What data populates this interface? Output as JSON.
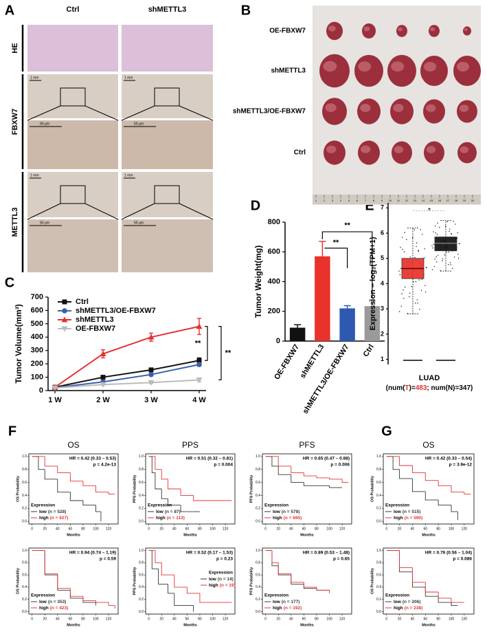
{
  "figure": {
    "panel_labels": [
      "A",
      "B",
      "C",
      "D",
      "E",
      "F",
      "G"
    ],
    "panel_a": {
      "columns": [
        "Ctrl",
        "shMETTL3"
      ],
      "rows": [
        "HE",
        "FBXW7",
        "METTL3"
      ],
      "scale_bars": [
        "1 mm",
        "50 μm"
      ]
    },
    "panel_b": {
      "groups": [
        "OE-FBXW7",
        "shMETTL3",
        "shMETTL3/OE-FBXW7",
        "Ctrl"
      ],
      "ruler": [
        1,
        2,
        3,
        4,
        5,
        6,
        7,
        8,
        9,
        10,
        11,
        12,
        13,
        14,
        15,
        16,
        17,
        18,
        19,
        20
      ]
    }
  },
  "chart_data": [
    {
      "type": "line",
      "ylabel": "Tumor Volume(mm³)",
      "categories": [
        "1 W",
        "2 W",
        "3 W",
        "4 W"
      ],
      "ylim": [
        0,
        700
      ],
      "yticks": [
        0,
        100,
        200,
        300,
        400,
        500,
        600,
        700
      ],
      "legend": "upper left",
      "series": [
        {
          "name": "Ctrl",
          "color": "#111111",
          "marker": "square",
          "values": [
            25,
            100,
            155,
            225
          ],
          "errors": [
            5,
            10,
            12,
            20
          ]
        },
        {
          "name": "shMETTL3/OE-FBXW7",
          "color": "#3a5fb0",
          "marker": "circle",
          "values": [
            22,
            65,
            120,
            195
          ],
          "errors": [
            3,
            8,
            10,
            12
          ]
        },
        {
          "name": "shMETTL3",
          "color": "#e53030",
          "marker": "triangle",
          "values": [
            25,
            275,
            400,
            480
          ],
          "errors": [
            5,
            30,
            30,
            60
          ]
        },
        {
          "name": "OE-FBXW7",
          "color": "#bbbbbb",
          "marker": "triangle-down",
          "values": [
            20,
            45,
            60,
            80
          ],
          "errors": [
            3,
            5,
            8,
            15
          ]
        }
      ],
      "annotations": [
        "**",
        "**"
      ]
    },
    {
      "type": "bar",
      "ylabel": "Tumor Weight(mg)",
      "categories": [
        "OE-FBXW7",
        "shMETTL3",
        "shMETTL3/OE-FBXW7",
        "Ctrl"
      ],
      "values": [
        90,
        570,
        220,
        235
      ],
      "errors": [
        20,
        100,
        18,
        35
      ],
      "colors": [
        "#111111",
        "#e8322a",
        "#2f59b0",
        "#9a9a9a"
      ],
      "ylim": [
        0,
        800
      ],
      "yticks": [
        0,
        200,
        400,
        600,
        800
      ],
      "annotations": [
        "**",
        "**"
      ]
    },
    {
      "type": "box",
      "ylabel": "Expression – log₂(TPM+1)",
      "xlabel": "LUAD",
      "xlabel_note": [
        {
          "text": "(num("
        },
        {
          "text": "T",
          "color": "#e53030"
        },
        {
          "text": ")="
        },
        {
          "text": "483",
          "color": "#e53030"
        },
        {
          "text": "; num(N)=347)"
        }
      ],
      "ylim": [
        0.8,
        7.2
      ],
      "yticks": [
        1,
        2,
        3,
        4,
        5,
        6,
        7
      ],
      "boxes": [
        {
          "color": "#e8322a",
          "whisker_low": 2.8,
          "q1": 4.2,
          "median": 4.6,
          "q3": 5.0,
          "whisker_high": 6.2
        },
        {
          "color": "#111111",
          "whisker_low": 4.5,
          "q1": 5.3,
          "median": 5.6,
          "q3": 5.85,
          "whisker_high": 6.5
        }
      ],
      "annotations": [
        {
          "text": "*",
          "color": "#e53030"
        }
      ]
    },
    {
      "type": "km",
      "title": "OS",
      "ylabel": "OS Probability",
      "xlabel": "Months",
      "hr": "HR = 0.42 (0.33 – 0.53)",
      "p": "p = 4.2e-13",
      "legend_title": "Expression",
      "legend": "lower left",
      "xlim": [
        -5,
        135
      ],
      "ylim": [
        -0.04,
        1.04
      ],
      "xticks": [
        0,
        20,
        40,
        60,
        80,
        100,
        120
      ],
      "yticks": [
        {
          "value": 0,
          "label": "0.0"
        },
        0.2,
        0.4,
        0.6,
        0.8,
        {
          "value": 1,
          "label": "1.0"
        }
      ],
      "series": [
        {
          "name": "low",
          "n_label": "(n = 528)",
          "color": "#333333",
          "x": [
            0,
            10,
            20,
            40,
            60,
            80,
            100,
            108
          ],
          "values": [
            1,
            0.8,
            0.65,
            0.45,
            0.32,
            0.25,
            0.15,
            0
          ]
        },
        {
          "name": "high",
          "n_label": "(n = 627)",
          "color": "#e53030",
          "x": [
            0,
            20,
            40,
            60,
            80,
            100,
            120,
            130
          ],
          "values": [
            1,
            0.85,
            0.75,
            0.62,
            0.55,
            0.45,
            0.42,
            0.42
          ]
        }
      ]
    },
    {
      "type": "km",
      "title": "PPS",
      "ylabel": "PPS Probability",
      "xlabel": "Months",
      "hr": "HR = 0.51 (0.32 – 0.81)",
      "p": "p = 0.004",
      "legend_title": "Expression",
      "legend": "lower left",
      "xlim": [
        -5,
        135
      ],
      "ylim": [
        -0.04,
        1.04
      ],
      "xticks": [
        0,
        20,
        40,
        60,
        80,
        100,
        120
      ],
      "yticks": [
        {
          "value": 0,
          "label": "0.0"
        },
        0.2,
        0.4,
        0.6,
        0.8,
        {
          "value": 1,
          "label": "1.0"
        }
      ],
      "series": [
        {
          "name": "low",
          "n_label": "(n = 87)",
          "color": "#333333",
          "x": [
            0,
            5,
            10,
            20,
            30,
            50,
            70,
            80
          ],
          "values": [
            1,
            0.75,
            0.5,
            0.35,
            0.25,
            0.15,
            0.15,
            0.15
          ]
        },
        {
          "name": "high",
          "n_label": "(n = 113)",
          "color": "#e53030",
          "x": [
            0,
            10,
            20,
            30,
            50,
            70,
            100,
            130
          ],
          "values": [
            1,
            0.8,
            0.65,
            0.5,
            0.4,
            0.32,
            0.32,
            0.32
          ]
        }
      ]
    },
    {
      "type": "km",
      "title": "PFS",
      "ylabel": "PFS Probability",
      "xlabel": "Months",
      "hr": "HR = 0.65 (0.47 – 0.88)",
      "p": "p = 0.006",
      "legend_title": "Expression",
      "legend": "lower left",
      "xlim": [
        -5,
        135
      ],
      "ylim": [
        -0.04,
        1.04
      ],
      "xticks": [
        0,
        20,
        40,
        60,
        80,
        100,
        120
      ],
      "yticks": [
        {
          "value": 0,
          "label": "0.0"
        },
        0.2,
        0.4,
        0.6,
        0.8,
        {
          "value": 1,
          "label": "1.0"
        }
      ],
      "series": [
        {
          "name": "low",
          "n_label": "(n = 578)",
          "color": "#333333",
          "x": [
            0,
            10,
            20,
            40,
            60,
            80,
            100,
            120
          ],
          "values": [
            1,
            0.85,
            0.72,
            0.6,
            0.55,
            0.55,
            0.52,
            0.52
          ]
        },
        {
          "name": "high",
          "n_label": "(n = 695)",
          "color": "#e53030",
          "x": [
            0,
            20,
            40,
            60,
            80,
            100,
            120,
            130
          ],
          "values": [
            1,
            0.85,
            0.75,
            0.7,
            0.67,
            0.65,
            0.6,
            0.6
          ]
        }
      ]
    },
    {
      "type": "km",
      "title": "OS",
      "ylabel": "OS Probability",
      "xlabel": "Months",
      "hr": "HR = 0.42 (0.33 – 0.54)",
      "p": "p = 3.9e-12",
      "legend_title": "Expression",
      "legend": "lower left",
      "xlim": [
        -5,
        135
      ],
      "ylim": [
        -0.04,
        1.04
      ],
      "xticks": [
        0,
        20,
        40,
        60,
        80,
        100,
        120
      ],
      "yticks": [
        {
          "value": 0,
          "label": "0.0"
        },
        0.2,
        0.4,
        0.6,
        0.8,
        {
          "value": 1,
          "label": "1.0"
        }
      ],
      "series": [
        {
          "name": "low",
          "n_label": "(n = 515)",
          "color": "#333333",
          "x": [
            0,
            10,
            20,
            40,
            60,
            80,
            100,
            110
          ],
          "values": [
            1,
            0.8,
            0.66,
            0.46,
            0.33,
            0.25,
            0.15,
            0.02
          ]
        },
        {
          "name": "high",
          "n_label": "(n = 590)",
          "color": "#e53030",
          "x": [
            0,
            20,
            40,
            60,
            80,
            100,
            120,
            130
          ],
          "values": [
            1,
            0.86,
            0.75,
            0.63,
            0.55,
            0.45,
            0.42,
            0.42
          ]
        }
      ]
    },
    {
      "type": "km",
      "ylabel": "OS Probability",
      "xlabel": "Months",
      "hr": "HR = 0.94 (0.74 – 1.19)",
      "p": "p = 0.59",
      "legend_title": "Expression",
      "legend": "lower left",
      "xlim": [
        -5,
        135
      ],
      "ylim": [
        -0.04,
        1.04
      ],
      "xticks": [
        0,
        20,
        40,
        60,
        80,
        100,
        120
      ],
      "yticks": [
        {
          "value": 0,
          "label": "0.0"
        },
        0.2,
        0.4,
        0.6,
        0.8,
        {
          "value": 1,
          "label": "1.0"
        }
      ],
      "series": [
        {
          "name": "low",
          "n_label": "(n = 353)",
          "color": "#333333",
          "x": [
            0,
            20,
            40,
            60,
            80,
            100
          ],
          "values": [
            1,
            0.6,
            0.35,
            0.22,
            0.15,
            0.1
          ]
        },
        {
          "name": "high",
          "n_label": "(n = 423)",
          "color": "#e53030",
          "x": [
            0,
            20,
            40,
            60,
            80,
            100,
            120,
            130
          ],
          "values": [
            1,
            0.62,
            0.38,
            0.25,
            0.18,
            0.15,
            0.1,
            0.05
          ]
        }
      ]
    },
    {
      "type": "km",
      "ylabel": "PPS Probability",
      "xlabel": "Months",
      "hr": "HR = 0.52 (0.17 – 1.53)",
      "p": "p = 0.23",
      "legend_title": "Expression",
      "legend": "center right",
      "xlim": [
        -5,
        135
      ],
      "ylim": [
        -0.04,
        1.04
      ],
      "xticks": [
        0,
        20,
        40,
        60,
        80,
        100,
        120
      ],
      "yticks": [
        {
          "value": 0,
          "label": "0.0"
        },
        0.2,
        0.4,
        0.6,
        0.8,
        {
          "value": 1,
          "label": "1.0"
        }
      ],
      "series": [
        {
          "name": "low",
          "n_label": "(n = 14)",
          "color": "#333333",
          "x": [
            0,
            5,
            15,
            30,
            40,
            60,
            70
          ],
          "values": [
            1,
            0.7,
            0.45,
            0.3,
            0.1,
            0.1,
            0
          ]
        },
        {
          "name": "high",
          "n_label": "(n = 19)",
          "color": "#e53030",
          "x": [
            0,
            10,
            20,
            40,
            60,
            80,
            130
          ],
          "values": [
            1,
            0.8,
            0.6,
            0.4,
            0.3,
            0.15,
            0.15
          ]
        }
      ]
    },
    {
      "type": "km",
      "ylabel": "PFS Probability",
      "xlabel": "Months",
      "hr": "HR = 0.89 (0.53 – 1.48)",
      "p": "p = 0.65",
      "legend_title": "Expression",
      "legend": "lower left",
      "xlim": [
        -5,
        135
      ],
      "ylim": [
        -0.04,
        1.04
      ],
      "xticks": [
        0,
        20,
        40,
        60,
        80,
        100,
        120
      ],
      "yticks": [
        {
          "value": 0,
          "label": "0.0"
        },
        0.2,
        0.4,
        0.6,
        0.8,
        {
          "value": 1,
          "label": "1.0"
        }
      ],
      "series": [
        {
          "name": "low",
          "n_label": "(n = 177)",
          "color": "#333333",
          "x": [
            0,
            10,
            20,
            40,
            60,
            80,
            100
          ],
          "values": [
            1,
            0.75,
            0.6,
            0.45,
            0.38,
            0.35,
            0.35
          ]
        },
        {
          "name": "high",
          "n_label": "(n = 192)",
          "color": "#e53030",
          "x": [
            0,
            10,
            20,
            40,
            60,
            80,
            100
          ],
          "values": [
            1,
            0.8,
            0.62,
            0.48,
            0.4,
            0.35,
            0.3
          ]
        }
      ]
    },
    {
      "type": "km",
      "ylabel": "OS Probability",
      "xlabel": "Months",
      "hr": "HR = 0.76 (0.56 – 1.04)",
      "p": "p = 0.086",
      "legend_title": "Expression",
      "legend": "lower left",
      "xlim": [
        -5,
        135
      ],
      "ylim": [
        -0.04,
        1.04
      ],
      "xticks": [
        0,
        20,
        40,
        60,
        80,
        100,
        120
      ],
      "yticks": [
        {
          "value": 0,
          "label": "0.0"
        },
        0.2,
        0.4,
        0.6,
        0.8,
        {
          "value": 1,
          "label": "1.0"
        }
      ],
      "series": [
        {
          "name": "low",
          "n_label": "(n = 206)",
          "color": "#333333",
          "x": [
            0,
            20,
            40,
            60,
            80,
            100,
            110
          ],
          "values": [
            1,
            0.65,
            0.4,
            0.25,
            0.15,
            0.1,
            0.1
          ]
        },
        {
          "name": "high",
          "n_label": "(n = 238)",
          "color": "#e53030",
          "x": [
            0,
            20,
            40,
            60,
            80,
            100,
            120
          ],
          "values": [
            1,
            0.72,
            0.48,
            0.32,
            0.22,
            0.15,
            0.15
          ]
        }
      ]
    }
  ]
}
